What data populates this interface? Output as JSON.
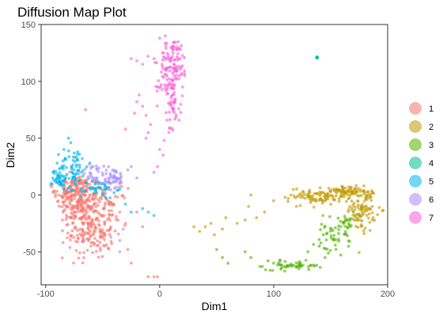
{
  "chart_data": {
    "type": "scatter",
    "title": "Diffusion Map Plot",
    "xlabel": "Dim1",
    "ylabel": "Dim2",
    "xlim": [
      -104,
      200
    ],
    "ylim": [
      -79,
      150
    ],
    "x_ticks": [
      -100,
      0,
      100,
      200
    ],
    "y_ticks": [
      -50,
      0,
      50,
      100,
      150
    ],
    "x_tick_labels": [
      "-100",
      "0",
      "100",
      "200"
    ],
    "y_tick_labels": [
      "-50",
      "0",
      "50",
      "100",
      "150"
    ],
    "grid": false,
    "legend_position": "right",
    "series": [
      {
        "name": "1",
        "color": "#F8766D",
        "clusters": [
          {
            "center": [
              -70,
              -5
            ],
            "spread": [
              10,
              12
            ],
            "count": 200
          },
          {
            "center": [
              -60,
              -32
            ],
            "spread": [
              10,
              12
            ],
            "count": 160
          },
          {
            "center": [
              -78,
              5
            ],
            "spread": [
              7,
              6
            ],
            "count": 70
          },
          {
            "center": [
              -45,
              -10
            ],
            "spread": [
              8,
              8
            ],
            "count": 50
          }
        ],
        "extra_points": [
          [
            -40,
            -8
          ],
          [
            -35,
            -15
          ],
          [
            -30,
            -25
          ],
          [
            -28,
            -48
          ],
          [
            -25,
            -60
          ],
          [
            -20,
            -15
          ],
          [
            -15,
            -28
          ],
          [
            -10,
            -72
          ],
          [
            -5,
            -72
          ],
          [
            -2,
            -72
          ],
          [
            -65,
            75
          ],
          [
            -35,
            10
          ]
        ]
      },
      {
        "name": "2",
        "color": "#C49A00",
        "clusters": [
          {
            "center": [
              150,
              0
            ],
            "spread": [
              18,
              3
            ],
            "count": 90
          },
          {
            "center": [
              178,
              -12
            ],
            "spread": [
              6,
              10
            ],
            "count": 100
          },
          {
            "center": [
              135,
              -6
            ],
            "spread": [
              6,
              4
            ],
            "count": 25
          },
          {
            "center": [
              165,
              4
            ],
            "spread": [
              10,
              2
            ],
            "count": 40
          }
        ],
        "extra_points": [
          [
            80,
            0
          ],
          [
            100,
            -5
          ],
          [
            120,
            -10
          ],
          [
            75,
            -22
          ],
          [
            68,
            -25
          ],
          [
            58,
            -20
          ],
          [
            45,
            -25
          ],
          [
            48,
            -35
          ],
          [
            55,
            -30
          ],
          [
            30,
            -28
          ],
          [
            35,
            -32
          ],
          [
            40,
            -28
          ],
          [
            85,
            -20
          ],
          [
            92,
            -15
          ],
          [
            110,
            -2
          ],
          [
            115,
            0
          ],
          [
            78,
            -10
          ]
        ]
      },
      {
        "name": "3",
        "color": "#53B400",
        "clusters": [
          {
            "center": [
              118,
              -62
            ],
            "spread": [
              12,
              2
            ],
            "count": 50
          },
          {
            "center": [
              150,
              -40
            ],
            "spread": [
              7,
              8
            ],
            "count": 40
          },
          {
            "center": [
              162,
              -25
            ],
            "spread": [
              5,
              6
            ],
            "count": 25
          }
        ],
        "extra_points": [
          [
            100,
            -60
          ],
          [
            95,
            -58
          ],
          [
            88,
            -63
          ],
          [
            80,
            -55
          ],
          [
            75,
            -50
          ],
          [
            60,
            -60
          ],
          [
            55,
            -55
          ],
          [
            50,
            -48
          ],
          [
            130,
            -50
          ],
          [
            140,
            -45
          ],
          [
            145,
            -55
          ],
          [
            170,
            -15
          ],
          [
            175,
            -18
          ]
        ]
      },
      {
        "name": "4",
        "color": "#00C094",
        "clusters": [],
        "extra_points": [
          [
            138,
            121
          ]
        ]
      },
      {
        "name": "5",
        "color": "#00B6EB",
        "clusters": [
          {
            "center": [
              -88,
              15
            ],
            "spread": [
              3,
              5
            ],
            "count": 45
          },
          {
            "center": [
              -75,
              25
            ],
            "spread": [
              6,
              8
            ],
            "count": 55
          },
          {
            "center": [
              -55,
              5
            ],
            "spread": [
              8,
              4
            ],
            "count": 45
          }
        ],
        "extra_points": [
          [
            -80,
            50
          ],
          [
            -78,
            46
          ],
          [
            -84,
            40
          ],
          [
            -72,
            38
          ],
          [
            -68,
            32
          ],
          [
            -90,
            28
          ],
          [
            -30,
            -8
          ],
          [
            -25,
            -15
          ],
          [
            -15,
            -12
          ],
          [
            -10,
            -15
          ],
          [
            -5,
            -18
          ],
          [
            -35,
            5
          ],
          [
            -40,
            2
          ]
        ]
      },
      {
        "name": "6",
        "color": "#A58AFF",
        "clusters": [
          {
            "center": [
              -42,
              15
            ],
            "spread": [
              6,
              5
            ],
            "count": 50
          },
          {
            "center": [
              -58,
              20
            ],
            "spread": [
              5,
              4
            ],
            "count": 20
          }
        ],
        "extra_points": [
          [
            -25,
            25
          ],
          [
            -28,
            22
          ],
          [
            -32,
            -30
          ],
          [
            -35,
            -40
          ],
          [
            -35,
            -50
          ],
          [
            -20,
            15
          ],
          [
            -50,
            10
          ],
          [
            -45,
            5
          ]
        ]
      },
      {
        "name": "7",
        "color": "#FB61D7",
        "clusters": [
          {
            "center": [
              12,
              118
            ],
            "spread": [
              6,
              10
            ],
            "count": 95
          },
          {
            "center": [
              8,
              95
            ],
            "spread": [
              5,
              7
            ],
            "count": 45
          },
          {
            "center": [
              12,
              75
            ],
            "spread": [
              4,
              8
            ],
            "count": 30
          }
        ],
        "extra_points": [
          [
            -25,
            120
          ],
          [
            -20,
            118
          ],
          [
            -15,
            115
          ],
          [
            -10,
            122
          ],
          [
            -5,
            120
          ],
          [
            0,
            138
          ],
          [
            5,
            140
          ],
          [
            -18,
            88
          ],
          [
            -15,
            78
          ],
          [
            -12,
            70
          ],
          [
            -8,
            62
          ],
          [
            -10,
            55
          ],
          [
            -12,
            50
          ],
          [
            -20,
            82
          ],
          [
            -22,
            72
          ],
          [
            -30,
            58
          ],
          [
            0,
            40
          ],
          [
            3,
            35
          ],
          [
            -2,
            25
          ],
          [
            -5,
            20
          ],
          [
            4,
            48
          ],
          [
            8,
            55
          ],
          [
            20,
            95
          ],
          [
            22,
            105
          ],
          [
            18,
            120
          ]
        ]
      }
    ]
  }
}
